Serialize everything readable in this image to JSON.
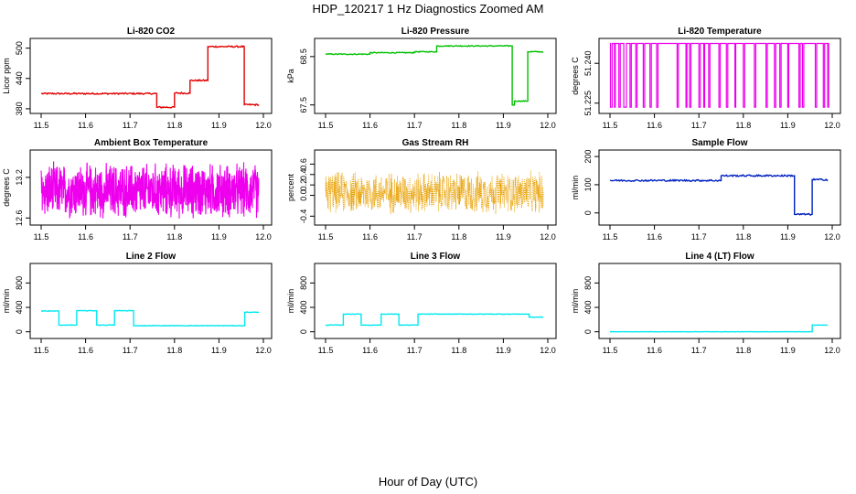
{
  "title": "HDP_120217  1 Hz Diagnostics Zoomed AM",
  "xlabel": "Hour of Day (UTC)",
  "chart_data": [
    {
      "type": "line",
      "title": "Li-820 CO2",
      "ylabel": "Licor ppm",
      "xlim": [
        11.5,
        12.0
      ],
      "ylim": [
        378,
        512
      ],
      "xticks": [
        "11.5",
        "11.6",
        "11.7",
        "11.8",
        "11.9",
        "12.0"
      ],
      "yticks": [
        380,
        440,
        500
      ],
      "color": "#e00000",
      "segments": [
        [
          11.5,
          11.76,
          410
        ],
        [
          11.76,
          11.8,
          383
        ],
        [
          11.8,
          11.835,
          411
        ],
        [
          11.835,
          11.875,
          436
        ],
        [
          11.875,
          11.957,
          503
        ],
        [
          11.957,
          11.99,
          388
        ]
      ],
      "noise": 1.5
    },
    {
      "type": "line",
      "title": "Li-820 Pressure",
      "ylabel": "kPa",
      "xlim": [
        11.5,
        12.0
      ],
      "ylim": [
        67.4,
        68.8
      ],
      "xticks": [
        "11.5",
        "11.6",
        "11.7",
        "11.8",
        "11.9",
        "12.0"
      ],
      "yticks": [
        67.5,
        68.5
      ],
      "color": "#00c000",
      "segments": [
        [
          11.5,
          11.6,
          68.55
        ],
        [
          11.6,
          11.7,
          68.58
        ],
        [
          11.7,
          11.75,
          68.6
        ],
        [
          11.75,
          11.92,
          68.72
        ],
        [
          11.92,
          11.925,
          67.5
        ],
        [
          11.925,
          11.955,
          67.58
        ],
        [
          11.955,
          11.99,
          68.6
        ]
      ],
      "noise": 0.01
    },
    {
      "type": "line",
      "title": "Li-820 Temperature",
      "ylabel": "degrees C",
      "xlim": [
        11.5,
        12.0
      ],
      "ylim": [
        51.2225,
        51.248
      ],
      "xticks": [
        "11.5",
        "11.6",
        "11.7",
        "11.8",
        "11.9",
        "12.0"
      ],
      "yticks": [
        51.225,
        51.24
      ],
      "ytick_labels": [
        "51.225",
        "51.240"
      ],
      "color": "#ee00ee",
      "levels": [
        51.2475,
        51.2235
      ],
      "switch_times": [
        11.501,
        11.505,
        11.51,
        11.512,
        11.52,
        11.523,
        11.531,
        11.537,
        11.545,
        11.548,
        11.558,
        11.561,
        11.575,
        11.578,
        11.59,
        11.593,
        11.605,
        11.608,
        11.651,
        11.654,
        11.671,
        11.673,
        11.679,
        11.682,
        11.7,
        11.703,
        11.711,
        11.713,
        11.722,
        11.725,
        11.745,
        11.748,
        11.762,
        11.765,
        11.781,
        11.783,
        11.8,
        11.803,
        11.825,
        11.828,
        11.851,
        11.854,
        11.87,
        11.873,
        11.882,
        11.885,
        11.9,
        11.902,
        11.925,
        11.928,
        11.933,
        11.936,
        11.962,
        11.965,
        11.98,
        11.983,
        11.99,
        11.992
      ]
    },
    {
      "type": "line",
      "title": "Ambient Box Temperature",
      "ylabel": "degrees C",
      "xlim": [
        11.5,
        12.0
      ],
      "ylim": [
        12.55,
        13.55
      ],
      "xticks": [
        "11.5",
        "11.6",
        "11.7",
        "11.8",
        "11.9",
        "12.0"
      ],
      "yticks": [
        12.6,
        13.2
      ],
      "color": "#ee00ee",
      "center": 13.0,
      "amplitude": 0.38,
      "style": "dense"
    },
    {
      "type": "scatter",
      "title": "Gas Stream RH",
      "ylabel": "percent",
      "xlim": [
        11.5,
        12.0
      ],
      "ylim": [
        -0.5,
        0.8
      ],
      "xticks": [
        "11.5",
        "11.6",
        "11.7",
        "11.8",
        "11.9",
        "12.0"
      ],
      "yticks": [
        -0.4,
        0.0,
        0.2,
        0.4,
        0.6
      ],
      "ytick_labels": [
        "-0.4",
        "0.0",
        "0.2",
        "0.4",
        "0.6"
      ],
      "color": "#e8a000",
      "center": 0.05,
      "amplitude": 0.32
    },
    {
      "type": "line",
      "title": "Sample Flow",
      "ylabel": "ml/min",
      "xlim": [
        11.5,
        12.0
      ],
      "ylim": [
        -30,
        210
      ],
      "xticks": [
        "11.5",
        "11.6",
        "11.7",
        "11.8",
        "11.9",
        "12.0"
      ],
      "yticks": [
        0,
        100,
        200
      ],
      "color": "#0020c0",
      "segments": [
        [
          11.5,
          11.75,
          115
        ],
        [
          11.75,
          11.915,
          132
        ],
        [
          11.915,
          11.955,
          -5
        ],
        [
          11.955,
          11.99,
          118
        ]
      ],
      "noise": 3
    },
    {
      "type": "line",
      "title": "Line 2 Flow",
      "ylabel": "ml/min",
      "xlim": [
        11.5,
        12.0
      ],
      "ylim": [
        -50,
        1060
      ],
      "xticks": [
        "11.5",
        "11.6",
        "11.7",
        "11.8",
        "11.9",
        "12.0"
      ],
      "yticks": [
        0,
        400,
        800
      ],
      "color": "#00e8f0",
      "segments": [
        [
          11.5,
          11.54,
          340
        ],
        [
          11.54,
          11.58,
          110
        ],
        [
          11.58,
          11.625,
          345
        ],
        [
          11.625,
          11.665,
          110
        ],
        [
          11.665,
          11.708,
          345
        ],
        [
          11.708,
          11.958,
          100
        ],
        [
          11.958,
          11.99,
          320
        ]
      ],
      "noise": 5
    },
    {
      "type": "line",
      "title": "Line 3 Flow",
      "ylabel": "ml/min",
      "xlim": [
        11.5,
        12.0
      ],
      "ylim": [
        -50,
        1060
      ],
      "xticks": [
        "11.5",
        "11.6",
        "11.7",
        "11.8",
        "11.9",
        "12.0"
      ],
      "yticks": [
        0,
        400,
        800
      ],
      "color": "#00e8f0",
      "segments": [
        [
          11.5,
          11.54,
          110
        ],
        [
          11.54,
          11.58,
          290
        ],
        [
          11.58,
          11.625,
          110
        ],
        [
          11.625,
          11.665,
          290
        ],
        [
          11.665,
          11.708,
          110
        ],
        [
          11.708,
          11.958,
          290
        ],
        [
          11.958,
          11.99,
          240
        ]
      ],
      "noise": 4
    },
    {
      "type": "line",
      "title": "Line 4 (LT) Flow",
      "ylabel": "ml/min",
      "xlim": [
        11.5,
        12.0
      ],
      "ylim": [
        -50,
        1060
      ],
      "xticks": [
        "11.5",
        "11.6",
        "11.7",
        "11.8",
        "11.9",
        "12.0"
      ],
      "yticks": [
        0,
        400,
        800
      ],
      "color": "#00e8f0",
      "segments": [
        [
          11.5,
          11.955,
          0
        ],
        [
          11.955,
          11.99,
          110
        ]
      ],
      "noise": 2
    }
  ]
}
